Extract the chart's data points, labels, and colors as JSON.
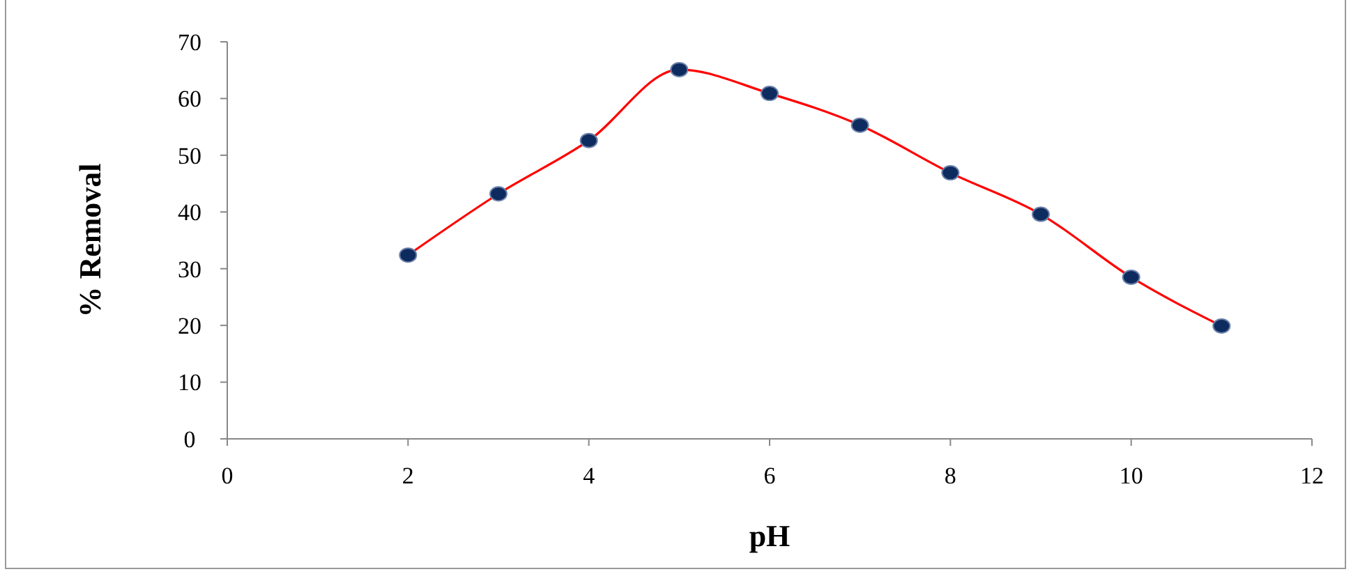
{
  "chart_data": {
    "type": "line",
    "xlabel": "pH",
    "ylabel": "% Removal",
    "x": [
      2,
      3,
      4,
      5,
      6,
      7,
      8,
      9,
      10,
      11
    ],
    "series": [
      {
        "color": "#ff0000",
        "values": [
          32.4,
          43.2,
          52.6,
          65.1,
          60.9,
          55.3,
          46.9,
          39.6,
          28.5,
          19.9
        ]
      }
    ],
    "xlim": [
      0,
      12
    ],
    "xticks": [
      0,
      2,
      4,
      6,
      8,
      10,
      12
    ],
    "ylim": [
      0,
      70
    ],
    "yticks": [
      0,
      10,
      20,
      30,
      40,
      50,
      60,
      70
    ],
    "grid": false,
    "marker": "circle",
    "line_style": "solid"
  }
}
